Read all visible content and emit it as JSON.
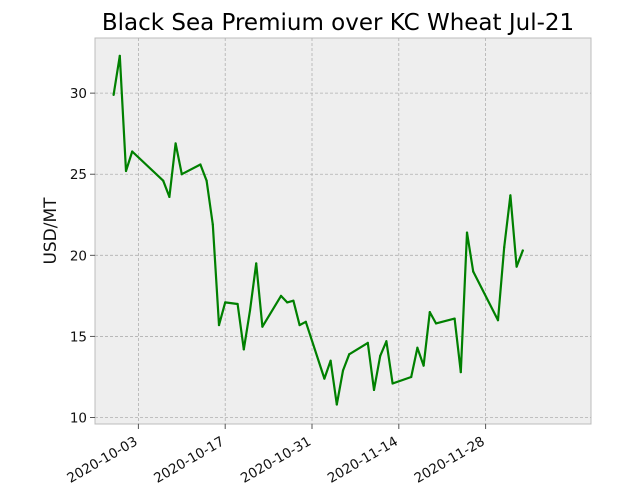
{
  "chart_data": {
    "type": "line",
    "title": "Black Sea Premium over KC Wheat Jul-21",
    "xlabel": "",
    "ylabel": "USD/MT",
    "x_type": "date",
    "xlim": [
      "2020-09-26",
      "2020-12-15"
    ],
    "ylim": [
      9.6,
      33.4
    ],
    "x_ticks": [
      "2020-10-03",
      "2020-10-17",
      "2020-10-31",
      "2020-11-14",
      "2020-11-28"
    ],
    "y_ticks": [
      10,
      15,
      20,
      25,
      30
    ],
    "grid": true,
    "legend": "none",
    "colors": {
      "line": "#008000",
      "plot_background": "#eeeeee",
      "grid": "#b0b0b0",
      "frame": "#bcbcbc"
    },
    "series": [
      {
        "x": [
          "2020-09-29",
          "2020-09-30",
          "2020-10-01",
          "2020-10-02",
          "2020-10-07",
          "2020-10-08",
          "2020-10-09",
          "2020-10-10",
          "2020-10-13",
          "2020-10-14",
          "2020-10-15",
          "2020-10-16",
          "2020-10-17",
          "2020-10-19",
          "2020-10-20",
          "2020-10-21",
          "2020-10-22",
          "2020-10-23",
          "2020-10-26",
          "2020-10-27",
          "2020-10-28",
          "2020-10-29",
          "2020-10-30",
          "2020-11-02",
          "2020-11-03",
          "2020-11-04",
          "2020-11-05",
          "2020-11-06",
          "2020-11-09",
          "2020-11-10",
          "2020-11-11",
          "2020-11-12",
          "2020-11-13",
          "2020-11-16",
          "2020-11-17",
          "2020-11-18",
          "2020-11-19",
          "2020-11-20",
          "2020-11-23",
          "2020-11-24",
          "2020-11-25",
          "2020-11-26",
          "2020-11-30",
          "2020-12-01",
          "2020-12-02",
          "2020-12-03",
          "2020-12-04"
        ],
        "y": [
          29.9,
          32.3,
          25.2,
          26.4,
          24.6,
          23.6,
          26.9,
          25.0,
          25.6,
          24.6,
          21.9,
          15.7,
          17.1,
          17.0,
          14.2,
          16.6,
          19.5,
          15.6,
          17.5,
          17.1,
          17.2,
          15.7,
          15.9,
          12.4,
          13.5,
          10.8,
          12.9,
          13.9,
          14.6,
          11.7,
          13.8,
          14.7,
          12.1,
          12.5,
          14.3,
          13.2,
          16.5,
          15.8,
          16.1,
          12.8,
          21.4,
          19.0,
          16.0,
          20.5,
          23.7,
          19.3,
          20.3
        ]
      }
    ]
  }
}
